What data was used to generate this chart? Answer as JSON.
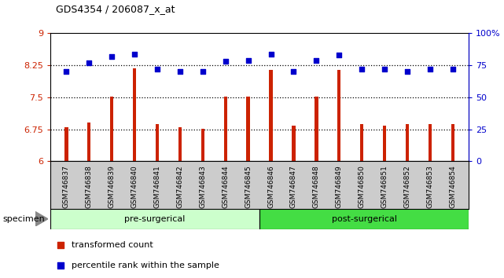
{
  "title": "GDS4354 / 206087_x_at",
  "samples": [
    "GSM746837",
    "GSM746838",
    "GSM746839",
    "GSM746840",
    "GSM746841",
    "GSM746842",
    "GSM746843",
    "GSM746844",
    "GSM746845",
    "GSM746846",
    "GSM746847",
    "GSM746848",
    "GSM746849",
    "GSM746850",
    "GSM746851",
    "GSM746852",
    "GSM746853",
    "GSM746854"
  ],
  "bar_values": [
    6.8,
    6.9,
    7.52,
    8.18,
    6.87,
    6.8,
    6.77,
    7.52,
    7.52,
    8.15,
    6.83,
    7.52,
    8.15,
    6.87,
    6.83,
    6.87,
    6.87,
    6.87
  ],
  "percentile_values": [
    70,
    77,
    82,
    84,
    72,
    70,
    70,
    78,
    79,
    84,
    70,
    79,
    83,
    72,
    72,
    70,
    72,
    72
  ],
  "bar_color": "#cc2200",
  "dot_color": "#0000cc",
  "ylim_left": [
    6,
    9
  ],
  "ylim_right": [
    0,
    100
  ],
  "yticks_left": [
    6,
    6.75,
    7.5,
    8.25,
    9
  ],
  "yticks_right": [
    0,
    25,
    50,
    75,
    100
  ],
  "ytick_labels_right": [
    "0",
    "25",
    "50",
    "75",
    "100%"
  ],
  "hlines": [
    6.75,
    7.5,
    8.25
  ],
  "pre_surgical_count": 9,
  "post_surgical_count": 9,
  "group_label_pre": "pre-surgerical",
  "group_label_post": "post-surgerical",
  "specimen_label": "specimen",
  "legend_bar_label": "transformed count",
  "legend_dot_label": "percentile rank within the sample",
  "pre_color": "#ccffcc",
  "post_color": "#44dd44",
  "xticklabel_bg": "#cccccc",
  "plot_bg": "#ffffff",
  "bar_width": 0.15
}
